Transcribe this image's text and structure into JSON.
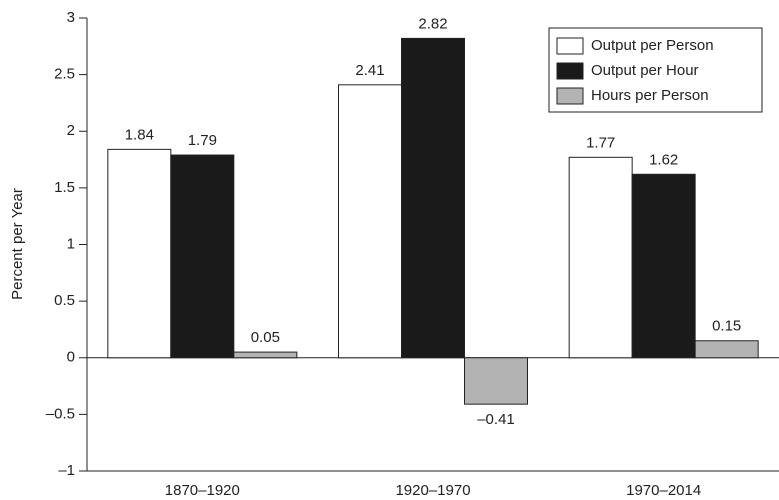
{
  "chart_data": {
    "type": "bar",
    "ylabel": "Percent per Year",
    "categories": [
      "1870–1920",
      "1920–1970",
      "1970–2014"
    ],
    "series": [
      {
        "name": "Output per Person",
        "color": "#ffffff",
        "values": [
          1.84,
          2.41,
          1.77
        ]
      },
      {
        "name": "Output per Hour",
        "color": "#1a1a1a",
        "values": [
          1.79,
          2.82,
          1.62
        ]
      },
      {
        "name": "Hours per Person",
        "color": "#b3b3b3",
        "values": [
          0.05,
          -0.41,
          0.15
        ],
        "value_labels": [
          "0.05",
          "–0.41",
          "0.15"
        ]
      }
    ],
    "ylim": [
      -1,
      3
    ],
    "yticks": [
      {
        "value": -1,
        "label": "–1"
      },
      {
        "value": -0.5,
        "label": "–0.5"
      },
      0,
      0.5,
      1,
      1.5,
      2,
      2.5,
      3
    ],
    "grid": false,
    "legend": "upper right"
  }
}
